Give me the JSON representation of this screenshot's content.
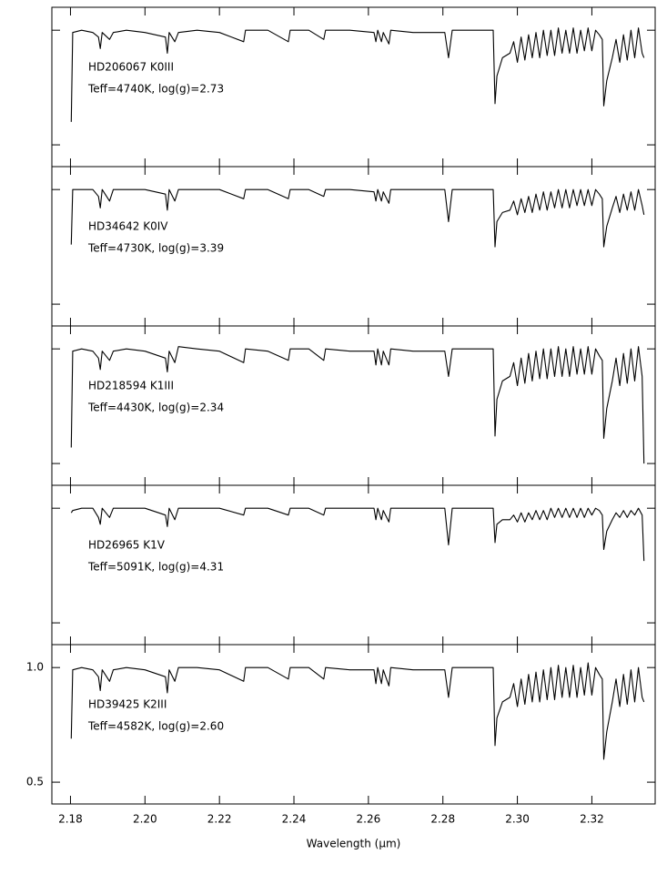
{
  "chart_data": [
    {
      "type": "line",
      "annotations": [
        "HD206067  K0III",
        "Teff=4740K, log(g)=2.73"
      ],
      "color": "#000000",
      "xlim": [
        2.175,
        2.337
      ],
      "ylim": [
        0.405,
        1.1
      ],
      "x": [
        2.1802,
        2.1806,
        2.183,
        2.186,
        2.1875,
        2.188,
        2.1885,
        2.1905,
        2.1915,
        2.195,
        2.2,
        2.2055,
        2.206,
        2.2065,
        2.208,
        2.209,
        2.214,
        2.22,
        2.2265,
        2.227,
        2.233,
        2.2385,
        2.239,
        2.244,
        2.248,
        2.2485,
        2.255,
        2.2615,
        2.262,
        2.2625,
        2.2635,
        2.264,
        2.2655,
        2.266,
        2.272,
        2.2805,
        2.2815,
        2.2825,
        2.288,
        2.2935,
        2.294,
        2.2945,
        2.296,
        2.298,
        2.299,
        2.3,
        2.301,
        2.302,
        2.303,
        2.304,
        2.305,
        2.306,
        2.307,
        2.308,
        2.309,
        2.31,
        2.311,
        2.312,
        2.313,
        2.314,
        2.315,
        2.316,
        2.317,
        2.318,
        2.319,
        2.32,
        2.321,
        2.322,
        2.3228,
        2.3232,
        2.324,
        2.3255,
        2.3265,
        2.3275,
        2.3285,
        2.3295,
        2.3305,
        2.3315,
        2.3325,
        2.3335,
        2.334
      ],
      "values": [
        0.6,
        0.99,
        1.0,
        0.99,
        0.97,
        0.92,
        0.99,
        0.96,
        0.99,
        1.0,
        0.99,
        0.97,
        0.9,
        0.99,
        0.95,
        0.99,
        1.0,
        0.99,
        0.95,
        1.0,
        1.0,
        0.95,
        1.0,
        1.0,
        0.96,
        1.0,
        1.0,
        0.99,
        0.95,
        1.0,
        0.95,
        0.99,
        0.94,
        1.0,
        0.99,
        0.99,
        0.88,
        1.0,
        1.0,
        1.0,
        0.68,
        0.8,
        0.88,
        0.9,
        0.95,
        0.86,
        0.97,
        0.87,
        0.98,
        0.88,
        0.99,
        0.88,
        1.0,
        0.89,
        1.0,
        0.89,
        1.01,
        0.9,
        1.0,
        0.9,
        1.01,
        0.9,
        1.0,
        0.91,
        1.01,
        0.91,
        1.0,
        0.98,
        0.96,
        0.67,
        0.78,
        0.88,
        0.96,
        0.86,
        0.98,
        0.87,
        1.0,
        0.88,
        1.01,
        0.9,
        0.88
      ]
    },
    {
      "type": "line",
      "annotations": [
        "HD34642  K0IV",
        "Teff=4730K, log(g)=3.39"
      ],
      "color": "#000000",
      "xlim": [
        2.175,
        2.337
      ],
      "ylim": [
        0.405,
        1.1
      ],
      "x": [
        2.1802,
        2.1806,
        2.183,
        2.186,
        2.1875,
        2.188,
        2.1885,
        2.1905,
        2.1915,
        2.195,
        2.2,
        2.2055,
        2.206,
        2.2065,
        2.208,
        2.209,
        2.214,
        2.22,
        2.2265,
        2.227,
        2.233,
        2.2385,
        2.239,
        2.244,
        2.248,
        2.2485,
        2.255,
        2.2615,
        2.262,
        2.2625,
        2.2635,
        2.264,
        2.2655,
        2.266,
        2.272,
        2.2805,
        2.2815,
        2.2825,
        2.288,
        2.2935,
        2.294,
        2.2945,
        2.296,
        2.298,
        2.299,
        2.3,
        2.301,
        2.302,
        2.303,
        2.304,
        2.305,
        2.306,
        2.307,
        2.308,
        2.309,
        2.31,
        2.311,
        2.312,
        2.313,
        2.314,
        2.315,
        2.316,
        2.317,
        2.318,
        2.319,
        2.32,
        2.321,
        2.322,
        2.3228,
        2.3232,
        2.324,
        2.3255,
        2.3265,
        2.3275,
        2.3285,
        2.3295,
        2.3305,
        2.3315,
        2.3325,
        2.3335,
        2.334
      ],
      "values": [
        0.76,
        1.0,
        1.0,
        1.0,
        0.97,
        0.92,
        1.0,
        0.95,
        1.0,
        1.0,
        1.0,
        0.98,
        0.91,
        1.0,
        0.95,
        1.0,
        1.0,
        1.0,
        0.96,
        1.0,
        1.0,
        0.96,
        1.0,
        1.0,
        0.97,
        1.0,
        1.0,
        0.99,
        0.95,
        1.0,
        0.95,
        0.99,
        0.94,
        1.0,
        1.0,
        1.0,
        0.86,
        1.0,
        1.0,
        1.0,
        0.75,
        0.86,
        0.9,
        0.91,
        0.95,
        0.89,
        0.96,
        0.9,
        0.97,
        0.9,
        0.98,
        0.91,
        0.99,
        0.91,
        0.99,
        0.92,
        1.0,
        0.92,
        1.0,
        0.92,
        1.0,
        0.93,
        1.0,
        0.93,
        1.0,
        0.93,
        1.0,
        0.98,
        0.96,
        0.75,
        0.84,
        0.92,
        0.97,
        0.9,
        0.98,
        0.91,
        0.99,
        0.91,
        1.0,
        0.93,
        0.89
      ]
    },
    {
      "type": "line",
      "annotations": [
        "HD218594  K1III",
        "Teff=4430K, log(g)=2.34"
      ],
      "color": "#000000",
      "xlim": [
        2.175,
        2.337
      ],
      "ylim": [
        0.405,
        1.1
      ],
      "x": [
        2.1802,
        2.1806,
        2.183,
        2.186,
        2.1875,
        2.188,
        2.1885,
        2.1905,
        2.1915,
        2.195,
        2.2,
        2.2055,
        2.206,
        2.2065,
        2.208,
        2.209,
        2.214,
        2.22,
        2.2265,
        2.227,
        2.233,
        2.2385,
        2.239,
        2.244,
        2.248,
        2.2485,
        2.255,
        2.2615,
        2.262,
        2.2625,
        2.2635,
        2.264,
        2.2655,
        2.266,
        2.272,
        2.2805,
        2.2815,
        2.2825,
        2.288,
        2.2935,
        2.294,
        2.2945,
        2.296,
        2.298,
        2.299,
        2.3,
        2.301,
        2.302,
        2.303,
        2.304,
        2.305,
        2.306,
        2.307,
        2.308,
        2.309,
        2.31,
        2.311,
        2.312,
        2.313,
        2.314,
        2.315,
        2.316,
        2.317,
        2.318,
        2.319,
        2.32,
        2.321,
        2.322,
        2.3228,
        2.3232,
        2.324,
        2.3255,
        2.3265,
        2.3275,
        2.3285,
        2.3295,
        2.3305,
        2.3315,
        2.3325,
        2.3335,
        2.334
      ],
      "values": [
        0.57,
        0.99,
        1.0,
        0.99,
        0.96,
        0.91,
        0.99,
        0.95,
        0.99,
        1.0,
        0.99,
        0.96,
        0.9,
        0.99,
        0.94,
        1.01,
        1.0,
        0.99,
        0.94,
        1.0,
        0.99,
        0.95,
        1.0,
        1.0,
        0.95,
        1.0,
        0.99,
        0.99,
        0.93,
        1.0,
        0.93,
        0.99,
        0.93,
        1.0,
        0.99,
        0.99,
        0.88,
        1.0,
        1.0,
        1.0,
        0.62,
        0.78,
        0.86,
        0.88,
        0.94,
        0.84,
        0.96,
        0.85,
        0.98,
        0.86,
        0.99,
        0.87,
        1.0,
        0.87,
        1.0,
        0.88,
        1.01,
        0.88,
        1.0,
        0.88,
        1.01,
        0.89,
        1.0,
        0.89,
        1.01,
        0.89,
        1.0,
        0.97,
        0.95,
        0.61,
        0.74,
        0.86,
        0.96,
        0.84,
        0.98,
        0.85,
        1.0,
        0.86,
        1.01,
        0.88,
        0.5
      ]
    },
    {
      "type": "line",
      "annotations": [
        "HD26965  K1V",
        "Teff=5091K, log(g)=4.31"
      ],
      "color": "#000000",
      "xlim": [
        2.175,
        2.337
      ],
      "ylim": [
        0.405,
        1.1
      ],
      "x": [
        2.1802,
        2.1806,
        2.183,
        2.186,
        2.1875,
        2.188,
        2.1885,
        2.1905,
        2.1915,
        2.195,
        2.2,
        2.2055,
        2.206,
        2.2065,
        2.208,
        2.209,
        2.214,
        2.22,
        2.2265,
        2.227,
        2.233,
        2.2385,
        2.239,
        2.244,
        2.248,
        2.2485,
        2.255,
        2.2615,
        2.262,
        2.2625,
        2.2635,
        2.264,
        2.2655,
        2.266,
        2.272,
        2.2805,
        2.2815,
        2.2825,
        2.288,
        2.2935,
        2.294,
        2.2945,
        2.296,
        2.298,
        2.299,
        2.3,
        2.301,
        2.302,
        2.303,
        2.304,
        2.305,
        2.306,
        2.307,
        2.308,
        2.309,
        2.31,
        2.311,
        2.312,
        2.313,
        2.314,
        2.315,
        2.316,
        2.317,
        2.318,
        2.319,
        2.32,
        2.321,
        2.322,
        2.3228,
        2.3232,
        2.324,
        2.3255,
        2.3265,
        2.3275,
        2.3285,
        2.3295,
        2.3305,
        2.3315,
        2.3325,
        2.3335,
        2.334
      ],
      "values": [
        0.98,
        0.99,
        1.0,
        1.0,
        0.96,
        0.93,
        1.0,
        0.96,
        1.0,
        1.0,
        1.0,
        0.97,
        0.92,
        1.0,
        0.95,
        1.0,
        1.0,
        1.0,
        0.97,
        1.0,
        1.0,
        0.97,
        1.0,
        1.0,
        0.97,
        1.0,
        1.0,
        1.0,
        0.95,
        1.0,
        0.95,
        0.99,
        0.94,
        1.0,
        1.0,
        1.0,
        0.84,
        1.0,
        1.0,
        1.0,
        0.85,
        0.93,
        0.95,
        0.95,
        0.97,
        0.94,
        0.98,
        0.94,
        0.98,
        0.95,
        0.99,
        0.95,
        0.99,
        0.95,
        1.0,
        0.96,
        1.0,
        0.96,
        1.0,
        0.96,
        1.0,
        0.96,
        1.0,
        0.96,
        1.0,
        0.97,
        1.0,
        0.99,
        0.97,
        0.82,
        0.9,
        0.95,
        0.98,
        0.96,
        0.99,
        0.96,
        0.99,
        0.97,
        1.0,
        0.97,
        0.77
      ]
    },
    {
      "type": "line",
      "annotations": [
        "HD39425  K2III",
        "Teff=4582K, log(g)=2.60"
      ],
      "color": "#000000",
      "xlim": [
        2.175,
        2.337
      ],
      "ylim": [
        0.405,
        1.1
      ],
      "yticks": [
        0.5,
        {
          "value": 1,
          "label": "1.0"
        }
      ],
      "xticks": [
        2.18,
        {
          "value": 2.2,
          "label": "2.20"
        },
        2.22,
        2.24,
        2.26,
        2.28,
        {
          "value": 2.3,
          "label": "2.30"
        },
        2.32
      ],
      "xlabel": "Wavelength (µm)",
      "x": [
        2.1802,
        2.1806,
        2.183,
        2.186,
        2.1875,
        2.188,
        2.1885,
        2.1905,
        2.1915,
        2.195,
        2.2,
        2.2055,
        2.206,
        2.2065,
        2.208,
        2.209,
        2.214,
        2.22,
        2.2265,
        2.227,
        2.233,
        2.2385,
        2.239,
        2.244,
        2.248,
        2.2485,
        2.255,
        2.2615,
        2.262,
        2.2625,
        2.2635,
        2.264,
        2.2655,
        2.266,
        2.272,
        2.2805,
        2.2815,
        2.2825,
        2.288,
        2.2935,
        2.294,
        2.2945,
        2.296,
        2.298,
        2.299,
        2.3,
        2.301,
        2.302,
        2.303,
        2.304,
        2.305,
        2.306,
        2.307,
        2.308,
        2.309,
        2.31,
        2.311,
        2.312,
        2.313,
        2.314,
        2.315,
        2.316,
        2.317,
        2.318,
        2.319,
        2.32,
        2.321,
        2.322,
        2.3228,
        2.3232,
        2.324,
        2.3255,
        2.3265,
        2.3275,
        2.3285,
        2.3295,
        2.3305,
        2.3315,
        2.3325,
        2.3335,
        2.334
      ],
      "values": [
        0.69,
        0.99,
        1.0,
        0.99,
        0.96,
        0.9,
        0.99,
        0.94,
        0.99,
        1.0,
        0.99,
        0.96,
        0.89,
        0.99,
        0.94,
        1.0,
        1.0,
        0.99,
        0.94,
        1.0,
        1.0,
        0.95,
        1.0,
        1.0,
        0.95,
        1.0,
        0.99,
        0.99,
        0.93,
        1.0,
        0.93,
        0.99,
        0.92,
        1.0,
        0.99,
        0.99,
        0.87,
        1.0,
        1.0,
        1.0,
        0.66,
        0.78,
        0.85,
        0.87,
        0.93,
        0.83,
        0.95,
        0.84,
        0.97,
        0.85,
        0.98,
        0.85,
        0.99,
        0.86,
        1.0,
        0.86,
        1.01,
        0.87,
        1.0,
        0.87,
        1.01,
        0.87,
        1.0,
        0.88,
        1.02,
        0.88,
        1.0,
        0.97,
        0.95,
        0.6,
        0.72,
        0.85,
        0.95,
        0.83,
        0.97,
        0.84,
        0.99,
        0.85,
        1.0,
        0.87,
        0.85
      ]
    }
  ]
}
